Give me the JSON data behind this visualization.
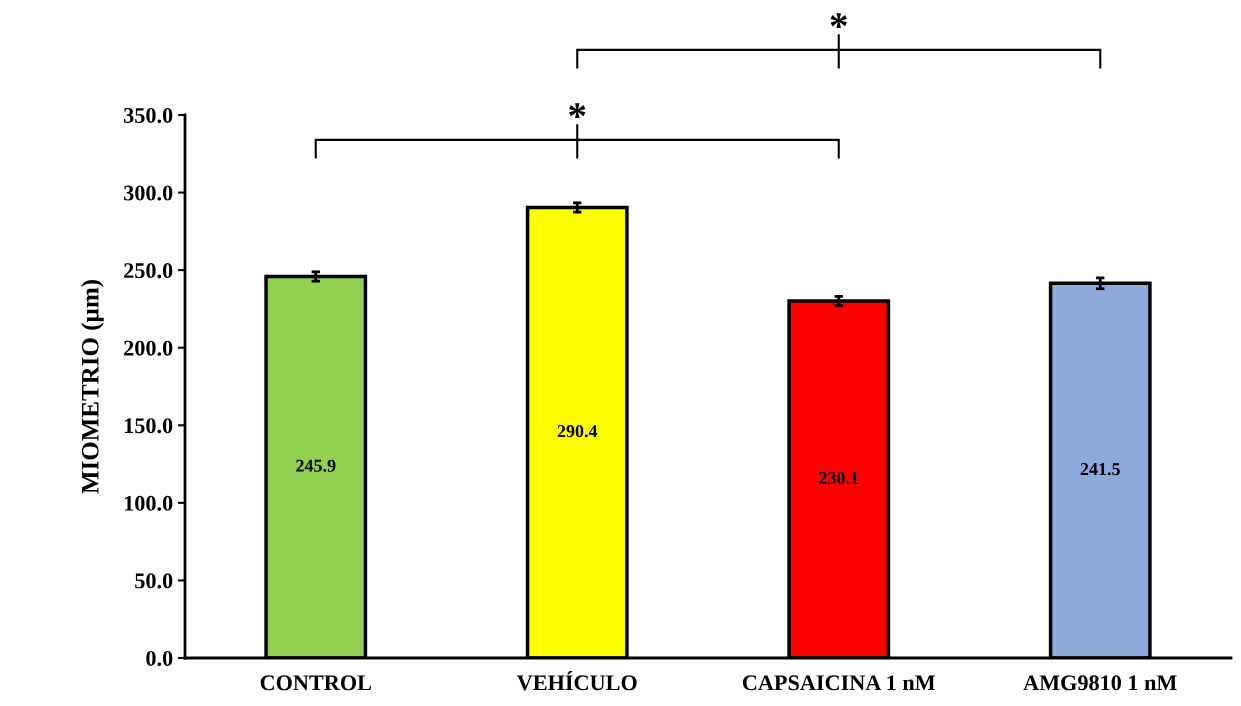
{
  "chart_data": {
    "type": "bar",
    "ylabel": "MIOMETRIO (µm)",
    "categories": [
      "CONTROL",
      "VEHÍCULO",
      "CAPSAICINA 1 nM",
      "AMG9810 1 nM"
    ],
    "values": [
      245.9,
      290.4,
      230.1,
      241.5
    ],
    "colors": [
      "#92d050",
      "#ffff00",
      "#ff0000",
      "#8eaadb"
    ],
    "errors": [
      3,
      3,
      3,
      3.5
    ],
    "ylim": [
      0,
      350
    ],
    "yticks": [
      {
        "value": 0,
        "label": "0.0"
      },
      {
        "value": 50,
        "label": "50.0"
      },
      {
        "value": 100,
        "label": "100.0"
      },
      {
        "value": 150,
        "label": "150.0"
      },
      {
        "value": 200,
        "label": "200.0"
      },
      {
        "value": 250,
        "label": "250.0"
      },
      {
        "value": 300,
        "label": "300.0"
      },
      {
        "value": 350,
        "label": "350.0"
      }
    ],
    "data_labels": true,
    "grid": false,
    "legend": false,
    "annotations": [
      "*",
      "*"
    ]
  }
}
